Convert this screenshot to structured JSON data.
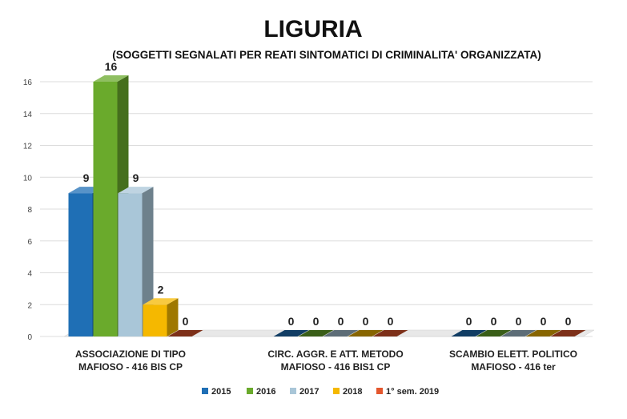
{
  "chart_data": {
    "type": "bar",
    "title": "LIGURIA",
    "subtitle": "(SOGGETTI SEGNALATI PER REATI SINTOMATICI DI CRIMINALITA' ORGANIZZATA)",
    "categories": [
      [
        "ASSOCIAZIONE DI TIPO",
        "MAFIOSO - 416 BIS CP"
      ],
      [
        "CIRC. AGGR. E ATT. METODO",
        "MAFIOSO - 416 BIS1 CP"
      ],
      [
        "SCAMBIO ELETT. POLITICO",
        "MAFIOSO - 416 ter"
      ]
    ],
    "series": [
      {
        "name": "2015",
        "color": "#1f6fb5",
        "values": [
          9,
          0,
          0
        ]
      },
      {
        "name": "2016",
        "color": "#6aaa2c",
        "values": [
          16,
          0,
          0
        ]
      },
      {
        "name": "2017",
        "color": "#a9c6d8",
        "values": [
          9,
          0,
          0
        ]
      },
      {
        "name": "2018",
        "color": "#f5b800",
        "values": [
          2,
          0,
          0
        ]
      },
      {
        "name": "1° sem. 2019",
        "color": "#e4572e",
        "values": [
          0,
          0,
          0
        ]
      }
    ],
    "yticks": [
      0,
      2,
      4,
      6,
      8,
      10,
      12,
      14,
      16
    ],
    "ylim": [
      0,
      16
    ],
    "grid": true,
    "legend": "bottom",
    "three_d": true
  }
}
